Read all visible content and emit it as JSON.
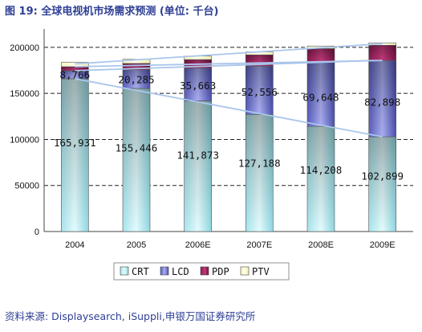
{
  "title": "图 19: 全球电视机市场需求预测   (单位: 千台)",
  "source": "资料来源: Displaysearch, iSuppli,申银万国证券研究所",
  "chart_data": {
    "type": "bar",
    "stacked": true,
    "title": "图 19: 全球电视机市场需求预测   (单位: 千台)",
    "unit": "千台",
    "categories": [
      "2004",
      "2005",
      "2006E",
      "2007E",
      "2008E",
      "2009E"
    ],
    "series": [
      {
        "name": "CRT",
        "values": [
          165931,
          155446,
          141873,
          127188,
          114208,
          102899
        ],
        "color": "#bfeef2"
      },
      {
        "name": "LCD",
        "values": [
          8766,
          20285,
          35663,
          52556,
          69648,
          82898
        ],
        "color": "#7b7fd6"
      },
      {
        "name": "PDP",
        "values": [
          4300,
          6800,
          9200,
          12100,
          14800,
          16500
        ],
        "color": "#9e1e5c"
      },
      {
        "name": "PTV",
        "values": [
          4800,
          4500,
          3800,
          3200,
          2800,
          2500
        ],
        "color": "#ffffd0"
      }
    ],
    "data_labels": {
      "CRT": [
        "165,931",
        "155,446",
        "141,873",
        "127,188",
        "114,208",
        "102,899"
      ],
      "LCD": [
        "8,766",
        "20,285",
        "35,663",
        "52,556",
        "69,648",
        "82,898"
      ]
    },
    "ylim": [
      0,
      220000
    ],
    "yticks": [
      "0",
      "50000",
      "100000",
      "150000",
      "200000"
    ],
    "ytick_values": [
      0,
      50000,
      100000,
      150000,
      200000
    ],
    "grid": true,
    "legend_position": "bottom"
  }
}
